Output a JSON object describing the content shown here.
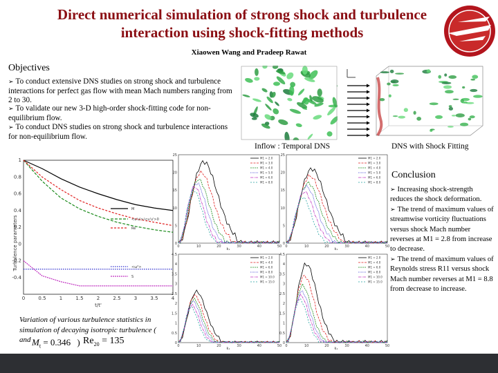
{
  "header": {
    "title_line1": "Direct numerical simulation of strong shock and turbulence",
    "title_line2": "interaction using shock-fitting methods",
    "authors": "Xiaowen Wang and Pradeep Rawat"
  },
  "objectives": {
    "heading": "Objectives",
    "items": [
      "To conduct extensive DNS studies on strong shock and turbulence interactions for perfect gas flow with mean Mach numbers ranging from 2 to 30.",
      "To validate our new 3-D high-order shock-fitting code for non-equilibrium flow.",
      "To conduct DNS studies on strong shock and turbulence interactions for non-equilibrium flow."
    ]
  },
  "figures": {
    "inflow_caption": "Inflow : Temporal DNS",
    "dns_caption": "DNS with Shock Fitting",
    "left_caption": "Variation of various turbulence statistics in simulation of decaying isotropic turbulence (",
    "left_caption_and": "and",
    "formula_mt": "M",
    "formula_mt_sub": "t",
    "formula_mt_value": "= 0.346",
    "formula_close": ")",
    "formula_re": "Re",
    "formula_re_sub": "20",
    "formula_re_value": "= 135"
  },
  "conclusion": {
    "heading": "Conclusion",
    "items": [
      "Increasing shock-strength reduces the shock deformation.",
      "The trend of maximum values of streamwise vorticity fluctuations versus shock Mach number reverses at M1 = 2.8 from increase to decrease.",
      "The trend of maximum values of Reynolds stress R11 versus shock Mach number reverses at M1 = 8.8 from decrease to increase."
    ]
  },
  "chart_data": [
    {
      "type": "line",
      "xlabel": "t/t'",
      "ylabel": "Turbulence parameters",
      "ylim": [
        -0.6,
        1.0
      ],
      "xlim": [
        0,
        4
      ],
      "x_ticks": [
        "0",
        "0.5",
        "1",
        "1.5",
        "2",
        "2.5",
        "3",
        "3.5",
        "4"
      ],
      "y_ticks": [
        "1",
        "0.8",
        "0.6",
        "0.4",
        "0.2",
        "0",
        "-0.2",
        "-0.4"
      ],
      "series": [
        {
          "name": "M",
          "color": "#000000",
          "x": [
            0,
            0.5,
            1,
            1.5,
            2,
            2.5,
            3,
            3.5,
            4
          ],
          "values": [
            1.0,
            0.9,
            0.78,
            0.68,
            0.6,
            0.53,
            0.47,
            0.43,
            0.4
          ]
        },
        {
          "name": "<u'u'>/<u'u'>0",
          "color": "#1a8a1a",
          "x": [
            0,
            0.5,
            1,
            1.5,
            2,
            2.5,
            3,
            3.5,
            4
          ],
          "values": [
            1.0,
            0.75,
            0.55,
            0.42,
            0.33,
            0.26,
            0.21,
            0.17,
            0.14
          ]
        },
        {
          "name": "Re",
          "color": "#e02020",
          "x": [
            0,
            0.5,
            1,
            1.5,
            2,
            2.5,
            3,
            3.5,
            4
          ],
          "values": [
            1.0,
            0.8,
            0.65,
            0.52,
            0.43,
            0.36,
            0.3,
            0.26,
            0.22
          ]
        },
        {
          "name": "<ω²>",
          "color": "#3030d0",
          "x": [
            0,
            0.5,
            1,
            1.5,
            2,
            2.5,
            3,
            3.5,
            4
          ],
          "values": [
            -0.3,
            -0.3,
            -0.3,
            -0.3,
            -0.3,
            -0.3,
            -0.3,
            -0.3,
            -0.3
          ]
        },
        {
          "name": "S",
          "color": "#c030c0",
          "x": [
            0,
            0.5,
            1,
            1.5,
            2,
            2.5,
            3,
            3.5,
            4
          ],
          "values": [
            -0.2,
            -0.38,
            -0.45,
            -0.5,
            -0.5,
            -0.5,
            -0.5,
            -0.5,
            -0.5
          ]
        }
      ]
    },
    {
      "type": "line",
      "xlabel": "k₁",
      "xlim": [
        0,
        50
      ],
      "ylim": [
        0,
        25
      ],
      "x_ticks": [
        "0",
        "10",
        "20",
        "30",
        "40",
        "50"
      ],
      "y_ticks": [
        "25",
        "20",
        "15",
        "10",
        "5",
        "0"
      ],
      "legend": [
        "M1 = 2.0",
        "M1 = 3.0",
        "M1 = 4.0",
        "M1 = 5.0",
        "M1 = 6.0",
        "M1 = 8.0"
      ],
      "colors": [
        "#000000",
        "#e02020",
        "#1a8a1a",
        "#3030d0",
        "#c030c0",
        "#20a0a0"
      ],
      "peaks": [
        23,
        20,
        18,
        17,
        16,
        15
      ],
      "widths": [
        28,
        25,
        22,
        20,
        18,
        17
      ]
    },
    {
      "type": "line",
      "xlabel": "k₁",
      "xlim": [
        0,
        50
      ],
      "ylim": [
        0,
        25
      ],
      "x_ticks": [
        "0",
        "10",
        "20",
        "30",
        "40",
        "50"
      ],
      "y_ticks": [
        "25",
        "20",
        "15",
        "10",
        "5",
        "0"
      ],
      "legend": [
        "M1 = 2.0",
        "M1 = 3.0",
        "M1 = 4.0",
        "M1 = 5.0",
        "M1 = 6.0",
        "M1 = 8.0"
      ],
      "colors": [
        "#000000",
        "#e02020",
        "#1a8a1a",
        "#3030d0",
        "#c030c0",
        "#20a0a0"
      ],
      "peaks": [
        21,
        19,
        17,
        16,
        14.5,
        13
      ],
      "widths": [
        28,
        26,
        24,
        22,
        20,
        18
      ]
    },
    {
      "type": "line",
      "xlabel": "k₁",
      "xlim": [
        0,
        50
      ],
      "ylim": [
        0,
        4.5
      ],
      "x_ticks": [
        "0",
        "10",
        "20",
        "30",
        "40",
        "50"
      ],
      "y_ticks": [
        "4.5",
        "4",
        "3.5",
        "3",
        "2.5",
        "2",
        "1.5",
        "1",
        "0.5",
        "0"
      ],
      "legend": [
        "M1 = 2.0",
        "M1 = 4.0",
        "M1 = 6.0",
        "M1 = 8.0",
        "M1 = 10.0",
        "M1 = 15.0"
      ],
      "colors": [
        "#000000",
        "#e02020",
        "#1a8a1a",
        "#3030d0",
        "#c030c0",
        "#20a0a0"
      ],
      "peaks": [
        2.6,
        2.4,
        2.2,
        2.1,
        1.9,
        1.8
      ],
      "widths": [
        20,
        18,
        17,
        16,
        15,
        14
      ]
    },
    {
      "type": "line",
      "xlabel": "k₁",
      "xlim": [
        0,
        50
      ],
      "ylim": [
        0,
        4.5
      ],
      "x_ticks": [
        "0",
        "10",
        "20",
        "30",
        "40",
        "50"
      ],
      "y_ticks": [
        "4.5",
        "4",
        "3.5",
        "3",
        "2.5",
        "2",
        "1.5",
        "1",
        "0.5",
        "0"
      ],
      "legend": [
        "M1 = 2.0",
        "M1 = 4.0",
        "M1 = 6.0",
        "M1 = 8.0",
        "M1 = 10.0",
        "M1 = 15.0"
      ],
      "colors": [
        "#000000",
        "#e02020",
        "#1a8a1a",
        "#3030d0",
        "#c030c0",
        "#20a0a0"
      ],
      "peaks": [
        4.0,
        3.4,
        2.9,
        2.6,
        2.4,
        2.2
      ],
      "widths": [
        22,
        20,
        18,
        17,
        16,
        15
      ]
    }
  ]
}
